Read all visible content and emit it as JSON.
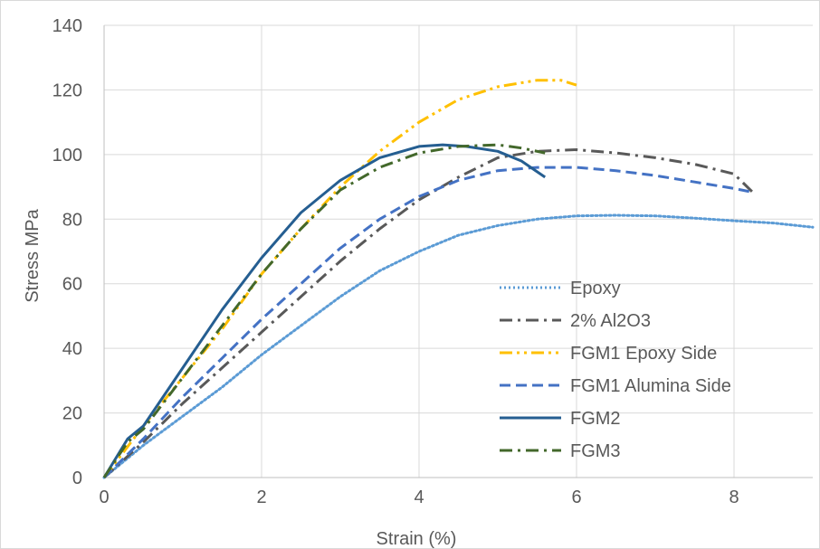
{
  "chart_data": {
    "type": "line",
    "title": "",
    "xlabel": "Strain (%)",
    "ylabel": "Stress MPa",
    "xlim": [
      0,
      9
    ],
    "ylim": [
      0,
      140
    ],
    "x_ticks": [
      "0",
      "2",
      "4",
      "6",
      "8"
    ],
    "y_ticks": [
      "0",
      "20",
      "40",
      "60",
      "80",
      "100",
      "120",
      "140"
    ],
    "grid": true,
    "legend_position": "right",
    "series": [
      {
        "name": "Epoxy",
        "color": "#5B9BD5",
        "style": "dotted",
        "points": [
          [
            0,
            0
          ],
          [
            0.5,
            10
          ],
          [
            1,
            19
          ],
          [
            1.5,
            28
          ],
          [
            2,
            38
          ],
          [
            2.5,
            47
          ],
          [
            3,
            56
          ],
          [
            3.5,
            64
          ],
          [
            4,
            70
          ],
          [
            4.5,
            75
          ],
          [
            5,
            78
          ],
          [
            5.5,
            80
          ],
          [
            6,
            81
          ],
          [
            6.5,
            81.2
          ],
          [
            7,
            81
          ],
          [
            7.5,
            80.3
          ],
          [
            8,
            79.5
          ],
          [
            8.5,
            78.8
          ],
          [
            9,
            77.5
          ]
        ]
      },
      {
        "name": "2% Al2O3",
        "color": "#595959",
        "style": "dashdot",
        "points": [
          [
            0,
            0
          ],
          [
            0.5,
            11
          ],
          [
            1,
            23
          ],
          [
            1.5,
            34
          ],
          [
            2,
            45
          ],
          [
            2.5,
            56
          ],
          [
            3,
            67
          ],
          [
            3.5,
            77
          ],
          [
            4,
            86
          ],
          [
            4.5,
            93
          ],
          [
            5,
            99
          ],
          [
            5.5,
            101
          ],
          [
            6,
            101.5
          ],
          [
            6.5,
            100.5
          ],
          [
            7,
            99
          ],
          [
            7.5,
            97
          ],
          [
            8,
            94
          ],
          [
            8.25,
            88
          ]
        ]
      },
      {
        "name": "FGM1 Epoxy Side",
        "color": "#FFC000",
        "style": "dashdotdot",
        "points": [
          [
            0,
            0
          ],
          [
            0.5,
            16
          ],
          [
            1,
            31
          ],
          [
            1.5,
            46
          ],
          [
            2,
            63
          ],
          [
            2.5,
            77
          ],
          [
            3,
            90
          ],
          [
            3.5,
            101
          ],
          [
            4,
            110
          ],
          [
            4.5,
            117
          ],
          [
            5,
            121
          ],
          [
            5.5,
            123
          ],
          [
            5.8,
            123
          ],
          [
            6,
            121.5
          ]
        ]
      },
      {
        "name": "FGM1 Alumina Side",
        "color": "#4472C4",
        "style": "dashed",
        "points": [
          [
            0,
            0
          ],
          [
            0.5,
            12
          ],
          [
            1,
            25
          ],
          [
            1.5,
            37
          ],
          [
            2,
            49
          ],
          [
            2.5,
            60
          ],
          [
            3,
            71
          ],
          [
            3.5,
            80
          ],
          [
            4,
            87
          ],
          [
            4.5,
            92
          ],
          [
            5,
            95
          ],
          [
            5.5,
            96
          ],
          [
            6,
            96
          ],
          [
            6.5,
            95
          ],
          [
            7,
            93.5
          ],
          [
            7.5,
            91.5
          ],
          [
            8,
            89.5
          ],
          [
            8.2,
            88.5
          ]
        ]
      },
      {
        "name": "FGM2",
        "color": "#255E91",
        "style": "solid",
        "points": [
          [
            0,
            0
          ],
          [
            0.3,
            12
          ],
          [
            0.5,
            16
          ],
          [
            1,
            34
          ],
          [
            1.5,
            52
          ],
          [
            2,
            68
          ],
          [
            2.5,
            82
          ],
          [
            3,
            92
          ],
          [
            3.5,
            99
          ],
          [
            4,
            102.5
          ],
          [
            4.3,
            103
          ],
          [
            4.6,
            102.5
          ],
          [
            5,
            101
          ],
          [
            5.3,
            98
          ],
          [
            5.6,
            93
          ]
        ]
      },
      {
        "name": "FGM3",
        "color": "#43682B",
        "style": "dashdot",
        "points": [
          [
            0,
            0
          ],
          [
            0.3,
            11
          ],
          [
            0.5,
            15
          ],
          [
            1,
            31
          ],
          [
            1.5,
            47
          ],
          [
            2,
            63
          ],
          [
            2.5,
            77
          ],
          [
            3,
            89
          ],
          [
            3.5,
            96
          ],
          [
            4,
            100.5
          ],
          [
            4.5,
            102.5
          ],
          [
            5,
            103
          ],
          [
            5.3,
            102
          ],
          [
            5.6,
            100.5
          ]
        ]
      }
    ]
  }
}
